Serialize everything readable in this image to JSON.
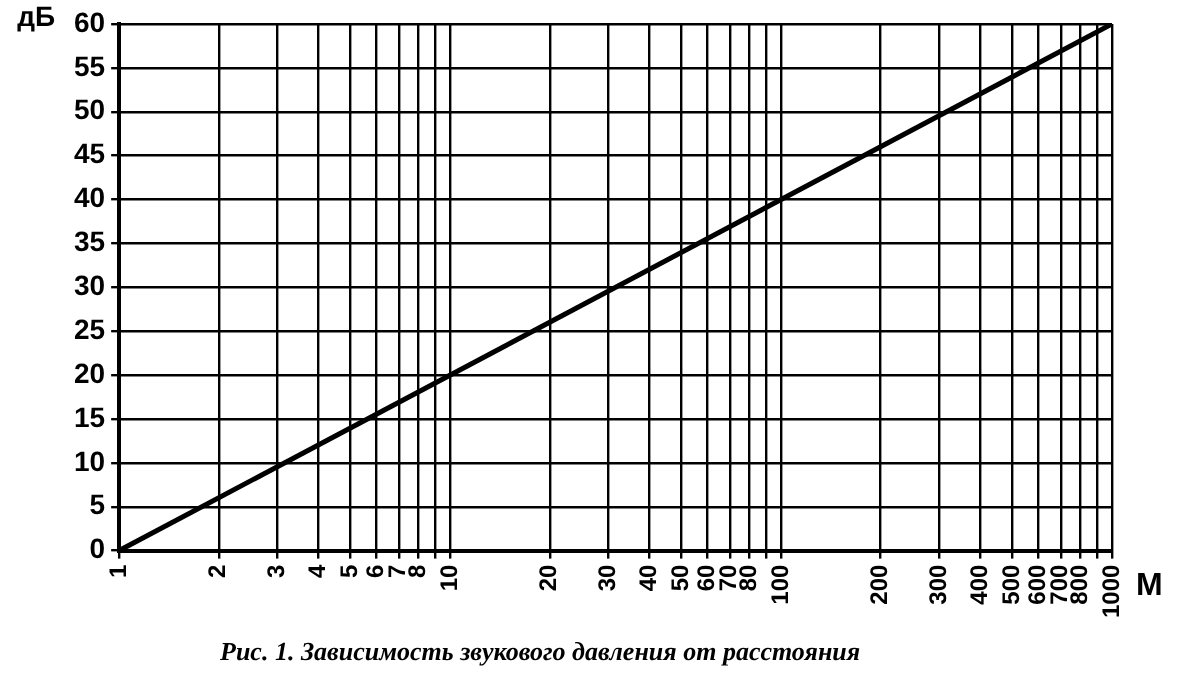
{
  "chart_data": {
    "type": "line",
    "xlabel": "М",
    "ylabel": "дБ",
    "annotations": [
      "Рис. 1. Зависимость звукового давления от расстояния"
    ],
    "x": [
      1,
      1000
    ],
    "series": [
      {
        "color": "#000000",
        "values": [
          0,
          60
        ]
      }
    ],
    "log": "x",
    "xlim": [
      1,
      1000
    ],
    "ylim": [
      0,
      60
    ],
    "xticks": [
      1,
      2,
      3,
      4,
      5,
      6,
      7,
      8,
      {
        "value": 9,
        "label": null
      },
      10,
      20,
      30,
      40,
      50,
      60,
      70,
      80,
      {
        "value": 90,
        "label": null
      },
      100,
      200,
      300,
      400,
      500,
      600,
      700,
      800,
      {
        "value": 900,
        "label": null
      },
      1000
    ],
    "yticks": [
      0,
      5,
      10,
      15,
      20,
      25,
      30,
      35,
      40,
      45,
      50,
      55,
      60
    ],
    "grid": true,
    "legend": false,
    "marker": "none",
    "line_style": "solid"
  }
}
